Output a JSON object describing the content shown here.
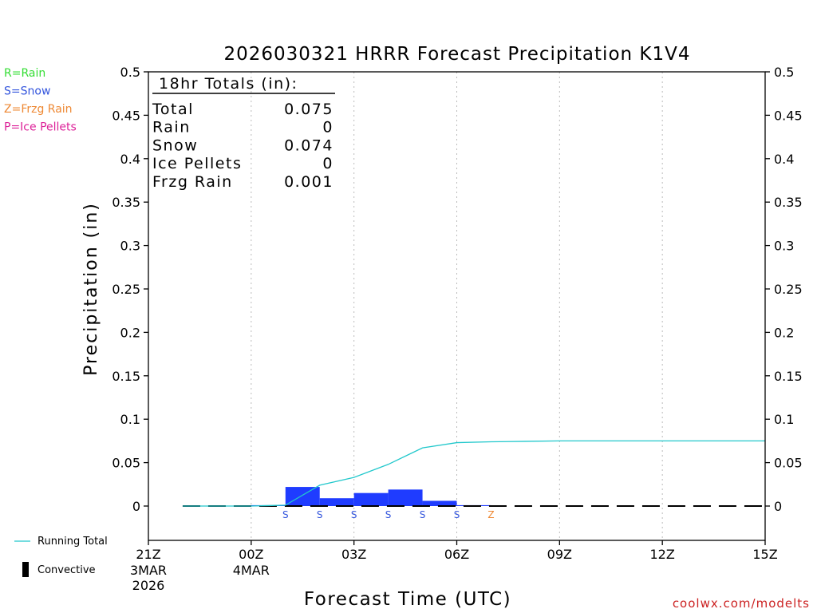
{
  "chart_data": {
    "type": "bar",
    "title": "2026030321 HRRR Forecast Precipitation K1V4",
    "xlabel": "Forecast Time (UTC)",
    "ylabel": "Precipitation (in)",
    "ylim": [
      -0.04,
      0.5
    ],
    "y_ticks": [
      0,
      0.05,
      0.1,
      0.15,
      0.2,
      0.25,
      0.3,
      0.35,
      0.4,
      0.45,
      0.5
    ],
    "y_tick_labels": [
      "0",
      "0.05",
      "0.1",
      "0.15",
      "0.2",
      "0.25",
      "0.3",
      "0.35",
      "0.4",
      "0.45",
      "0.5"
    ],
    "x_range_hours": [
      0,
      18
    ],
    "x_ticks": [
      {
        "hour": 0,
        "label": "21Z",
        "sub": [
          "3MAR",
          "2026"
        ]
      },
      {
        "hour": 3,
        "label": "00Z",
        "sub": [
          "4MAR"
        ]
      },
      {
        "hour": 6,
        "label": "03Z",
        "sub": []
      },
      {
        "hour": 9,
        "label": "06Z",
        "sub": []
      },
      {
        "hour": 12,
        "label": "09Z",
        "sub": []
      },
      {
        "hour": 15,
        "label": "12Z",
        "sub": []
      },
      {
        "hour": 18,
        "label": "15Z",
        "sub": []
      }
    ],
    "hourly_precip": [
      {
        "hour": 1,
        "value": 0
      },
      {
        "hour": 2,
        "value": 0
      },
      {
        "hour": 3,
        "value": 0
      },
      {
        "hour": 4,
        "value": 0.001
      },
      {
        "hour": 5,
        "value": 0.022
      },
      {
        "hour": 6,
        "value": 0.009
      },
      {
        "hour": 7,
        "value": 0.015
      },
      {
        "hour": 8,
        "value": 0.019
      },
      {
        "hour": 9,
        "value": 0.006
      },
      {
        "hour": 10,
        "value": 0.001
      },
      {
        "hour": 11,
        "value": 0
      },
      {
        "hour": 12,
        "value": 0
      },
      {
        "hour": 13,
        "value": 0
      },
      {
        "hour": 14,
        "value": 0
      },
      {
        "hour": 15,
        "value": 0
      },
      {
        "hour": 16,
        "value": 0
      },
      {
        "hour": 17,
        "value": 0
      },
      {
        "hour": 18,
        "value": 0
      }
    ],
    "running_total": {
      "name": "Running Total",
      "x": [
        1,
        2,
        3,
        3.5,
        4,
        5,
        6,
        7,
        8,
        9,
        10,
        11,
        12,
        18
      ],
      "y": [
        0,
        0,
        0,
        0.0005,
        0.001,
        0.024,
        0.033,
        0.048,
        0.067,
        0.073,
        0.074,
        0.0745,
        0.075,
        0.075
      ]
    },
    "ptype_markers": [
      {
        "hour": 4,
        "code": "S"
      },
      {
        "hour": 5,
        "code": "S"
      },
      {
        "hour": 6,
        "code": "S"
      },
      {
        "hour": 7,
        "code": "S"
      },
      {
        "hour": 8,
        "code": "S"
      },
      {
        "hour": 9,
        "code": "S"
      },
      {
        "hour": 10,
        "code": "Z"
      }
    ],
    "totals_box": {
      "header": "18hr Totals (in):",
      "rows": [
        {
          "label": "Total",
          "value": "0.075"
        },
        {
          "label": "Rain",
          "value": "0"
        },
        {
          "label": "Snow",
          "value": "0.074"
        },
        {
          "label": "Ice Pellets",
          "value": "0"
        },
        {
          "label": "Frzg Rain",
          "value": "0.001"
        }
      ]
    },
    "ptype_legend": [
      {
        "text": "R=Rain",
        "color": "#33dd33"
      },
      {
        "text": "S=Snow",
        "color": "#3355dd"
      },
      {
        "text": "Z=Frzg Rain",
        "color": "#ee8833"
      },
      {
        "text": "P=Ice Pellets",
        "color": "#dd2299"
      }
    ],
    "series_legend": [
      {
        "name": "Running Total",
        "kind": "line",
        "color": "#22c8cc"
      },
      {
        "name": "Convective",
        "kind": "bar",
        "color": "#000000"
      }
    ],
    "colors": {
      "snow_bar": "#1f3cff",
      "running_total": "#22c8cc",
      "snow_marker": "#3355dd",
      "frzg_marker": "#ee8833",
      "grid": "#bbbbbb"
    },
    "credit": "coolwx.com/modelts"
  }
}
